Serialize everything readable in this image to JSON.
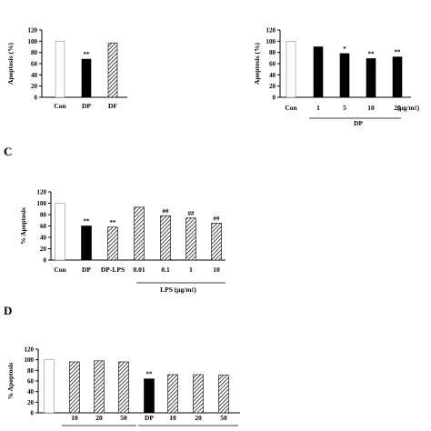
{
  "colors": {
    "black": "#000000",
    "white": "#ffffff",
    "hatch": "#000000"
  },
  "chart_data": [
    {
      "type": "bar",
      "panel_label": "",
      "ylabel": "Apoptosis (%)",
      "ylim": [
        0,
        120
      ],
      "yticks": [
        "0",
        "20",
        "40",
        "60",
        "80",
        "100",
        "120"
      ],
      "categories": [
        "Con",
        "DP",
        "DF"
      ],
      "values": [
        100,
        68,
        97
      ],
      "fills": [
        "white",
        "black",
        "hatch"
      ],
      "sig": [
        "",
        "**",
        ""
      ],
      "unit_label": "",
      "group_label": ""
    },
    {
      "type": "bar",
      "panel_label": "",
      "ylabel": "Apoptosis (%)",
      "ylim": [
        0,
        120
      ],
      "yticks": [
        "0",
        "20",
        "40",
        "60",
        "80",
        "100",
        "120"
      ],
      "categories": [
        "Con",
        "1",
        "5",
        "10",
        "20"
      ],
      "values": [
        100,
        90,
        78,
        69,
        72
      ],
      "fills": [
        "white",
        "black",
        "black",
        "black",
        "black"
      ],
      "sig": [
        "",
        "",
        "*",
        "**",
        "**"
      ],
      "unit_label": "(μg/mℓ)",
      "group_label": "DP"
    },
    {
      "type": "bar",
      "panel_label": "C",
      "ylabel": "% Apoptosis",
      "ylim": [
        0,
        120
      ],
      "yticks": [
        "0",
        "20",
        "40",
        "60",
        "80",
        "100",
        "120"
      ],
      "categories": [
        "Con",
        "DP",
        "DP-LPS",
        "0.01",
        "0.1",
        "1",
        "10"
      ],
      "values": [
        100,
        60,
        58,
        93,
        78,
        74,
        65
      ],
      "fills": [
        "white",
        "black",
        "hatch",
        "hatch",
        "hatch",
        "hatch",
        "hatch"
      ],
      "sig": [
        "",
        "**",
        "**",
        "",
        "##",
        "##",
        "##"
      ],
      "unit_label": "",
      "group_label": "LPS (μg/mℓ)"
    },
    {
      "type": "bar",
      "panel_label": "D",
      "ylabel": "% Apoptosis",
      "ylim": [
        0,
        120
      ],
      "yticks": [
        "0",
        "20",
        "40",
        "60",
        "80",
        "100",
        "120"
      ],
      "categories": [
        "",
        "10",
        "20",
        "50",
        "DP",
        "10",
        "20",
        "50"
      ],
      "values": [
        100,
        96,
        98,
        96,
        64,
        72,
        72,
        71
      ],
      "fills": [
        "white",
        "hatch",
        "hatch",
        "hatch",
        "black",
        "hatch",
        "hatch",
        "hatch"
      ],
      "sig": [
        "",
        "",
        "",
        "",
        "**",
        "",
        "",
        ""
      ],
      "unit_label": "",
      "group_label": ""
    }
  ]
}
